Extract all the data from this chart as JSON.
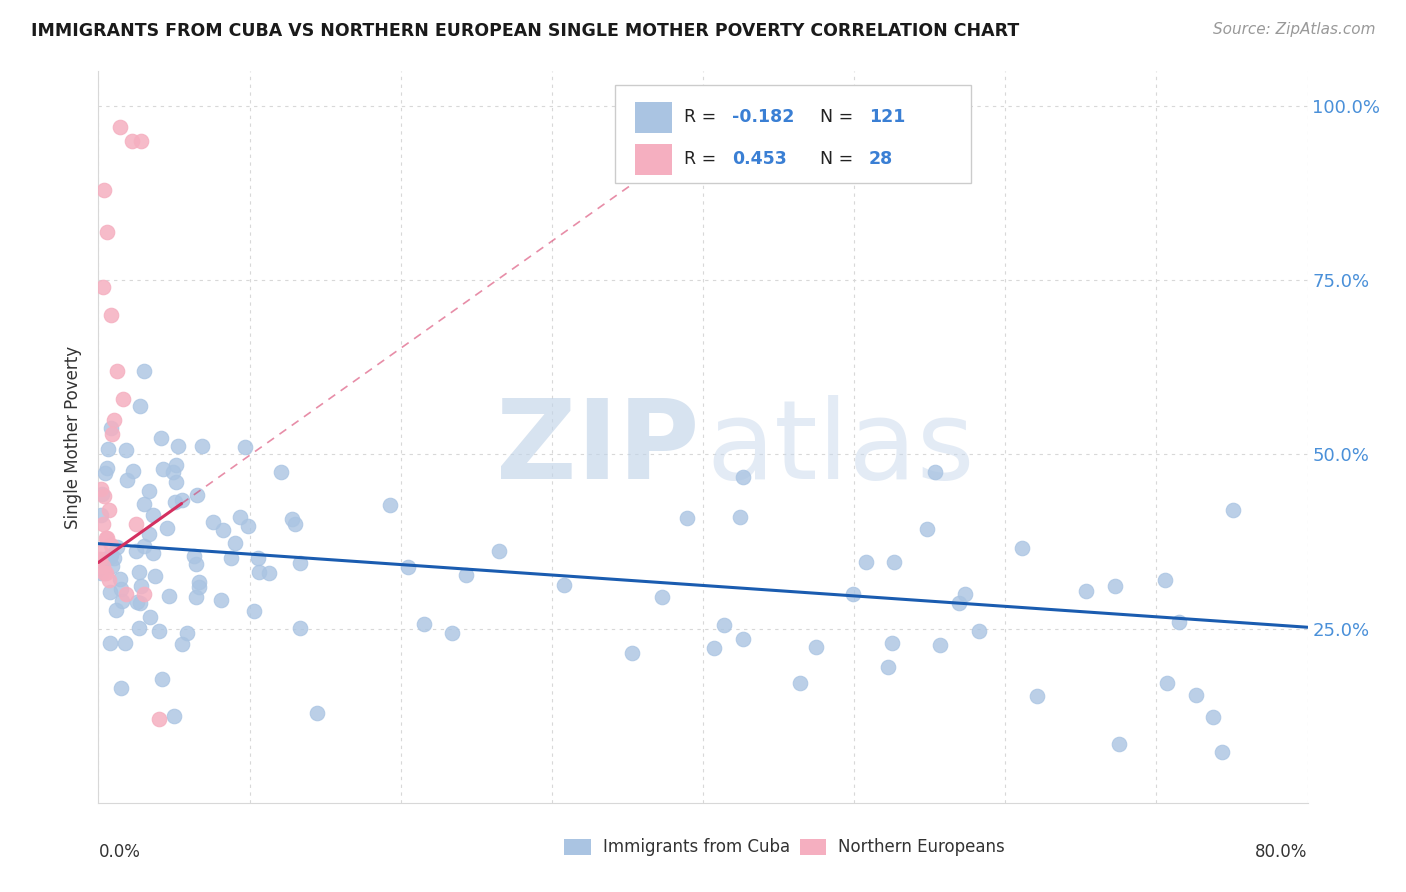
{
  "title": "IMMIGRANTS FROM CUBA VS NORTHERN EUROPEAN SINGLE MOTHER POVERTY CORRELATION CHART",
  "source": "Source: ZipAtlas.com",
  "ylabel": "Single Mother Poverty",
  "xmin": 0.0,
  "xmax": 0.8,
  "ymin": 0.0,
  "ymax": 1.05,
  "cuba_R": -0.182,
  "cuba_N": 121,
  "northern_R": 0.453,
  "northern_N": 28,
  "cuba_color": "#aac4e2",
  "northern_color": "#f5afc0",
  "cuba_line_color": "#1a5cb0",
  "northern_line_color": "#d43060",
  "ytick_positions": [
    0.25,
    0.5,
    0.75,
    1.0
  ],
  "ytick_labels": [
    "25.0%",
    "50.0%",
    "75.0%",
    "100.0%"
  ],
  "grid_color": "#d8d8d8",
  "watermark_zip_color": "#c5d5e8",
  "watermark_atlas_color": "#c5d5e8"
}
